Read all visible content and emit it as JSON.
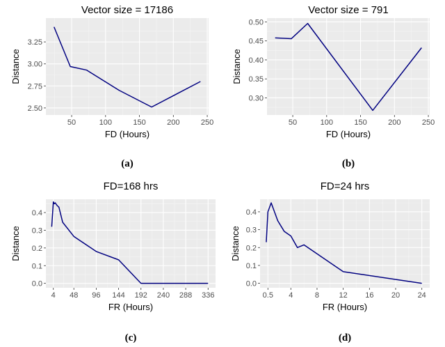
{
  "chart_data": [
    {
      "id": "a",
      "type": "line",
      "title": "Vector size = 17186",
      "xlabel": "FD (Hours)",
      "ylabel": "Distance",
      "caption": "(a)",
      "xlim": [
        12,
        252
      ],
      "ylim": [
        2.42,
        3.52
      ],
      "xticks": [
        50,
        100,
        150,
        200,
        250
      ],
      "xtick_labels": [
        "50",
        "100",
        "150",
        "200",
        "250"
      ],
      "yticks": [
        2.5,
        2.75,
        3.0,
        3.25
      ],
      "ytick_labels": [
        "2.50",
        "2.75",
        "3.00",
        "3.25"
      ],
      "series": [
        {
          "color": "#000080",
          "x": [
            24,
            48,
            72,
            120,
            168,
            240
          ],
          "y": [
            3.42,
            2.97,
            2.93,
            2.7,
            2.51,
            2.8
          ]
        }
      ]
    },
    {
      "id": "b",
      "type": "line",
      "title": "Vector size = 791",
      "xlabel": "FD (Hours)",
      "ylabel": "Distance",
      "caption": "(b)",
      "xlim": [
        12,
        252
      ],
      "ylim": [
        0.255,
        0.51
      ],
      "xticks": [
        50,
        100,
        150,
        200,
        250
      ],
      "xtick_labels": [
        "50",
        "100",
        "150",
        "200",
        "250"
      ],
      "yticks": [
        0.3,
        0.35,
        0.4,
        0.45,
        0.5
      ],
      "ytick_labels": [
        "0.30",
        "0.35",
        "0.40",
        "0.45",
        "0.50"
      ],
      "series": [
        {
          "color": "#000080",
          "x": [
            24,
            48,
            72,
            168,
            240
          ],
          "y": [
            0.458,
            0.456,
            0.496,
            0.267,
            0.432
          ]
        }
      ]
    },
    {
      "id": "c",
      "type": "line",
      "title": "FD=168 hrs",
      "xlabel": "FR (Hours)",
      "ylabel": "Distance",
      "caption": "(c)",
      "xlim": [
        -12,
        352
      ],
      "ylim": [
        -0.025,
        0.475
      ],
      "xticks": [
        4,
        48,
        96,
        144,
        192,
        240,
        288,
        336
      ],
      "xtick_labels": [
        "4",
        "48",
        "96",
        "144",
        "192",
        "240",
        "288",
        "336"
      ],
      "yticks": [
        0.0,
        0.1,
        0.2,
        0.3,
        0.4
      ],
      "ytick_labels": [
        "0.0",
        "0.1",
        "0.2",
        "0.3",
        "0.4"
      ],
      "series": [
        {
          "color": "#000080",
          "x": [
            0.5,
            4,
            6,
            8,
            12,
            16,
            24,
            48,
            96,
            144,
            192,
            240,
            288,
            336
          ],
          "y": [
            0.32,
            0.46,
            0.45,
            0.455,
            0.44,
            0.43,
            0.345,
            0.265,
            0.18,
            0.133,
            0.0,
            0.0,
            0.0,
            0.0
          ]
        }
      ]
    },
    {
      "id": "d",
      "type": "line",
      "title": "FD=24 hrs",
      "xlabel": "FR (Hours)",
      "ylabel": "Distance",
      "caption": "(d)",
      "xlim": [
        -0.7,
        25.2
      ],
      "ylim": [
        -0.025,
        0.47
      ],
      "xticks": [
        0.5,
        4,
        8,
        12,
        16,
        20,
        24
      ],
      "xtick_labels": [
        "0.5",
        "4",
        "8",
        "12",
        "16",
        "20",
        "24"
      ],
      "yticks": [
        0.0,
        0.1,
        0.2,
        0.3,
        0.4
      ],
      "ytick_labels": [
        "0.0",
        "0.1",
        "0.2",
        "0.3",
        "0.4"
      ],
      "series": [
        {
          "color": "#000080",
          "x": [
            0.25,
            0.5,
            1,
            2,
            3,
            4,
            5,
            6,
            12,
            24
          ],
          "y": [
            0.23,
            0.4,
            0.45,
            0.35,
            0.29,
            0.265,
            0.2,
            0.215,
            0.065,
            0.0
          ]
        }
      ]
    }
  ]
}
